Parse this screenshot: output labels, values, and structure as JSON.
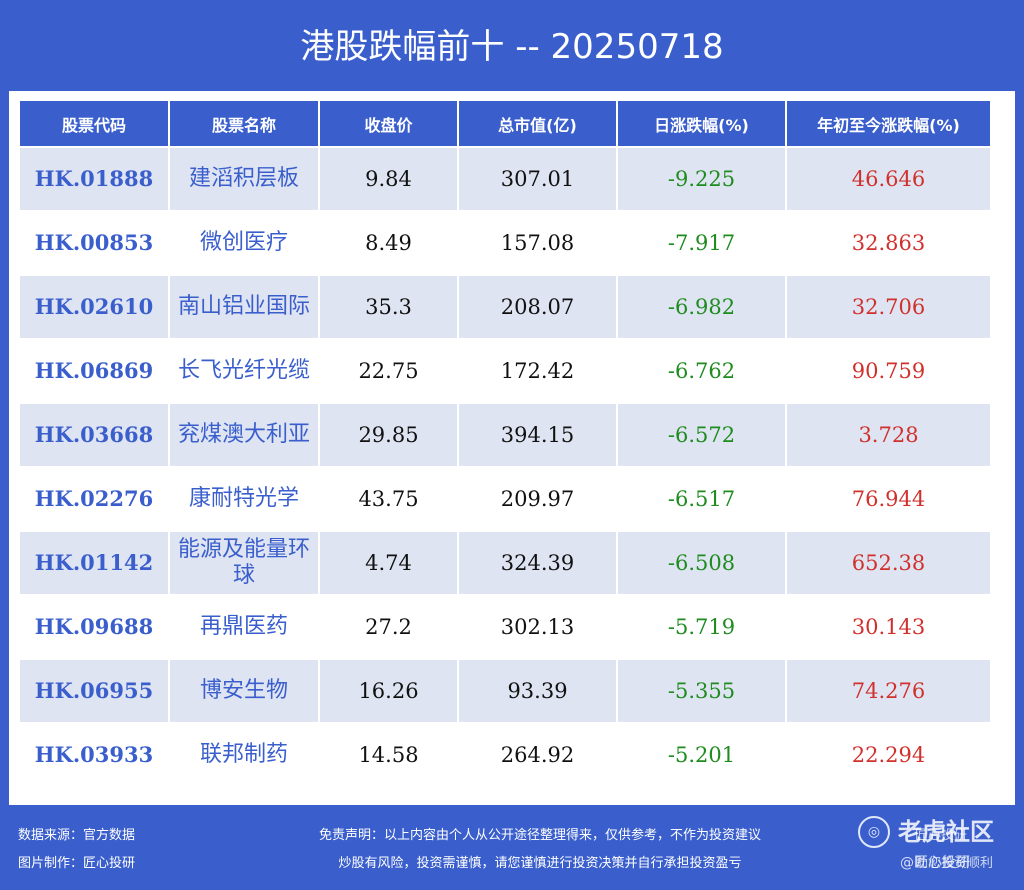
{
  "title": "港股跌幅前十 -- 20250718",
  "table": {
    "headers": [
      "股票代码",
      "股票名称",
      "收盘价",
      "总市值(亿)",
      "日涨跌幅(%)",
      "年初至今涨跌幅(%)"
    ],
    "rows": [
      {
        "code": "HK.01888",
        "name": "建滔积层板",
        "close": "9.84",
        "mcap": "307.01",
        "day": "-9.225",
        "ytd": "46.646"
      },
      {
        "code": "HK.00853",
        "name": "微创医疗",
        "close": "8.49",
        "mcap": "157.08",
        "day": "-7.917",
        "ytd": "32.863"
      },
      {
        "code": "HK.02610",
        "name": "南山铝业国际",
        "close": "35.3",
        "mcap": "208.07",
        "day": "-6.982",
        "ytd": "32.706"
      },
      {
        "code": "HK.06869",
        "name": "长飞光纤光缆",
        "close": "22.75",
        "mcap": "172.42",
        "day": "-6.762",
        "ytd": "90.759"
      },
      {
        "code": "HK.03668",
        "name": "兖煤澳大利亚",
        "close": "29.85",
        "mcap": "394.15",
        "day": "-6.572",
        "ytd": "3.728"
      },
      {
        "code": "HK.02276",
        "name": "康耐特光学",
        "close": "43.75",
        "mcap": "209.97",
        "day": "-6.517",
        "ytd": "76.944"
      },
      {
        "code": "HK.01142",
        "name": "能源及能量环球",
        "close": "4.74",
        "mcap": "324.39",
        "day": "-6.508",
        "ytd": "652.38"
      },
      {
        "code": "HK.09688",
        "name": "再鼎医药",
        "close": "27.2",
        "mcap": "302.13",
        "day": "-5.719",
        "ytd": "30.143"
      },
      {
        "code": "HK.06955",
        "name": "博安生物",
        "close": "16.26",
        "mcap": "93.39",
        "day": "-5.355",
        "ytd": "74.276"
      },
      {
        "code": "HK.03933",
        "name": "联邦制药",
        "close": "14.58",
        "mcap": "264.92",
        "day": "-5.201",
        "ytd": "22.294"
      }
    ]
  },
  "footer": {
    "source": "数据来源：官方数据",
    "made_by": "图片制作：匠心投研",
    "disclaimer_line1": "免责声明：以上内容由个人从公开途径整理得来，仅供参考，不作为投资建议",
    "disclaimer_line2": "炒股有风险，投资需谨慎，请您谨慎进行投资决策并自行承担投资盈亏",
    "right_line1": "匠心投研",
    "right_line2": "助您投资顺利"
  },
  "watermark": {
    "text": "老虎社区",
    "handle": "@匠心投研",
    "icon": "tiger-logo-icon"
  },
  "colors": {
    "background": "#3a5fcd",
    "row_stripe": "#dfe4f2",
    "code_text": "#3a5fcd",
    "negative": "#1e8c1e",
    "positive": "#d0312d"
  }
}
